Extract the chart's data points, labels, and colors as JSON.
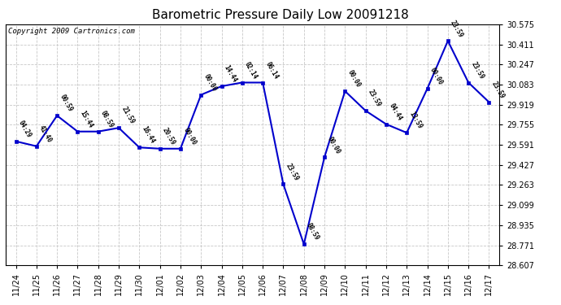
{
  "title": "Barometric Pressure Daily Low 20091218",
  "copyright": "Copyright 2009 Cartronics.com",
  "line_color": "#0000CC",
  "marker_color": "#0000CC",
  "bg_color": "#ffffff",
  "grid_color": "#c8c8c8",
  "ylim": [
    28.607,
    30.575
  ],
  "yticks": [
    28.607,
    28.771,
    28.935,
    29.099,
    29.263,
    29.427,
    29.591,
    29.755,
    29.919,
    30.083,
    30.247,
    30.411,
    30.575
  ],
  "data": [
    {
      "date": "11/24",
      "value": 29.62,
      "time": "04:29"
    },
    {
      "date": "11/25",
      "value": 29.58,
      "time": "41:40"
    },
    {
      "date": "11/26",
      "value": 29.83,
      "time": "00:59"
    },
    {
      "date": "11/27",
      "value": 29.7,
      "time": "15:44"
    },
    {
      "date": "11/28",
      "value": 29.7,
      "time": "08:59"
    },
    {
      "date": "11/29",
      "value": 29.73,
      "time": "21:59"
    },
    {
      "date": "11/30",
      "value": 29.57,
      "time": "16:44"
    },
    {
      "date": "12/01",
      "value": 29.56,
      "time": "20:59"
    },
    {
      "date": "12/02",
      "value": 29.56,
      "time": "00:00"
    },
    {
      "date": "12/03",
      "value": 30.0,
      "time": "00:00"
    },
    {
      "date": "12/04",
      "value": 30.07,
      "time": "14:44"
    },
    {
      "date": "12/05",
      "value": 30.1,
      "time": "02:14"
    },
    {
      "date": "12/06",
      "value": 30.1,
      "time": "06:14"
    },
    {
      "date": "12/07",
      "value": 29.27,
      "time": "23:59"
    },
    {
      "date": "12/08",
      "value": 28.78,
      "time": "08:59"
    },
    {
      "date": "12/09",
      "value": 29.49,
      "time": "00:00"
    },
    {
      "date": "12/10",
      "value": 30.03,
      "time": "00:00"
    },
    {
      "date": "12/11",
      "value": 29.87,
      "time": "23:59"
    },
    {
      "date": "12/12",
      "value": 29.76,
      "time": "04:44"
    },
    {
      "date": "12/13",
      "value": 29.69,
      "time": "13:59"
    },
    {
      "date": "12/14",
      "value": 30.05,
      "time": "00:00"
    },
    {
      "date": "12/15",
      "value": 30.44,
      "time": "23:59"
    },
    {
      "date": "12/16",
      "value": 30.1,
      "time": "23:59"
    },
    {
      "date": "12/17",
      "value": 29.94,
      "time": "23:59"
    }
  ],
  "title_fontsize": 11,
  "copyright_fontsize": 6.5,
  "tick_fontsize": 7,
  "annotation_fontsize": 5.5
}
